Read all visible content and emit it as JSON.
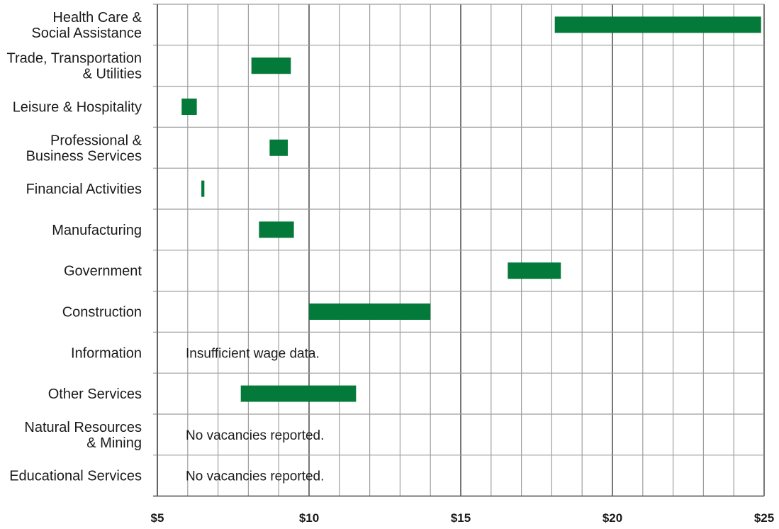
{
  "chart_data": {
    "type": "bar",
    "orientation": "horizontal",
    "subtype": "floating-range",
    "xlim": [
      5,
      25
    ],
    "x_ticks": [
      5,
      10,
      15,
      20,
      25
    ],
    "x_tick_labels": [
      "$5",
      "$10",
      "$15",
      "$20",
      "$25"
    ],
    "grid": true,
    "bar_color": "#047a3a",
    "grid_color": "#9e9e9e",
    "axis_color": "#555555",
    "categories": [
      {
        "label_lines": [
          "Health Care &",
          "Social Assistance"
        ],
        "range": [
          18.1,
          24.9
        ],
        "note": ""
      },
      {
        "label_lines": [
          "Trade, Transportation",
          "& Utilities"
        ],
        "range": [
          8.1,
          9.4
        ],
        "note": ""
      },
      {
        "label_lines": [
          "Leisure & Hospitality"
        ],
        "range": [
          5.8,
          6.3
        ],
        "note": ""
      },
      {
        "label_lines": [
          "Professional &",
          "Business Services"
        ],
        "range": [
          8.7,
          9.3
        ],
        "note": ""
      },
      {
        "label_lines": [
          "Financial Activities"
        ],
        "range": [
          6.45,
          6.55
        ],
        "note": ""
      },
      {
        "label_lines": [
          "Manufacturing"
        ],
        "range": [
          8.35,
          9.5
        ],
        "note": ""
      },
      {
        "label_lines": [
          "Government"
        ],
        "range": [
          16.55,
          18.3
        ],
        "note": ""
      },
      {
        "label_lines": [
          "Construction"
        ],
        "range": [
          10.0,
          14.0
        ],
        "note": ""
      },
      {
        "label_lines": [
          "Information"
        ],
        "range": null,
        "note": "Insufficient wage data."
      },
      {
        "label_lines": [
          "Other Services"
        ],
        "range": [
          7.75,
          11.55
        ],
        "note": ""
      },
      {
        "label_lines": [
          "Natural Resources",
          "& Mining"
        ],
        "range": null,
        "note": "No vacancies reported."
      },
      {
        "label_lines": [
          "Educational Services"
        ],
        "range": null,
        "note": "No vacancies reported."
      }
    ]
  }
}
